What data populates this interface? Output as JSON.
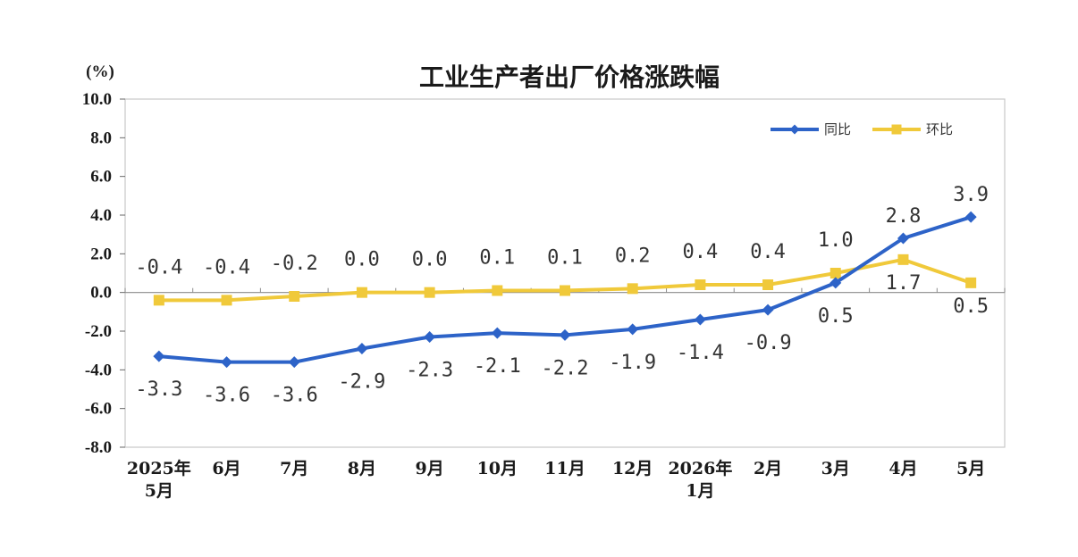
{
  "chart_data": {
    "type": "line",
    "title": "工业生产者出厂价格涨跌幅",
    "unit_label": "(%)",
    "categories": [
      [
        "2025年",
        "5月"
      ],
      [
        "6月"
      ],
      [
        "7月"
      ],
      [
        "8月"
      ],
      [
        "9月"
      ],
      [
        "10月"
      ],
      [
        "11月"
      ],
      [
        "12月"
      ],
      [
        "2026年",
        "1月"
      ],
      [
        "2月"
      ],
      [
        "3月"
      ],
      [
        "4月"
      ],
      [
        "5月"
      ]
    ],
    "ylim": [
      -8.0,
      10.0
    ],
    "yticks": [
      "10.0",
      "8.0",
      "6.0",
      "4.0",
      "2.0",
      "0.0",
      "-2.0",
      "-4.0",
      "-6.0",
      "-8.0"
    ],
    "ytick_values": [
      10,
      8,
      6,
      4,
      2,
      0,
      -2,
      -4,
      -6,
      -8
    ],
    "legend_position": "top-right",
    "series": [
      {
        "name": "同比",
        "color": "#2d63c8",
        "marker": "diamond",
        "values": [
          -3.3,
          -3.6,
          -3.6,
          -2.9,
          -2.3,
          -2.1,
          -2.2,
          -1.9,
          -1.4,
          -0.9,
          0.5,
          2.8,
          3.9
        ],
        "labels": [
          "-3.3",
          "-3.6",
          "-3.6",
          "-2.9",
          "-2.3",
          "-2.1",
          "-2.2",
          "-1.9",
          "-1.4",
          "-0.9",
          "0.5",
          "2.8",
          "3.9"
        ]
      },
      {
        "name": "环比",
        "color": "#f0c93a",
        "marker": "square",
        "values": [
          -0.4,
          -0.4,
          -0.2,
          0.0,
          0.0,
          0.1,
          0.1,
          0.2,
          0.4,
          0.4,
          1.0,
          1.7,
          0.5
        ],
        "labels": [
          "-0.4",
          "-0.4",
          "-0.2",
          "0.0",
          "0.0",
          "0.1",
          "0.1",
          "0.2",
          "0.4",
          "0.4",
          "1.0",
          "1.7",
          "0.5"
        ]
      }
    ]
  }
}
